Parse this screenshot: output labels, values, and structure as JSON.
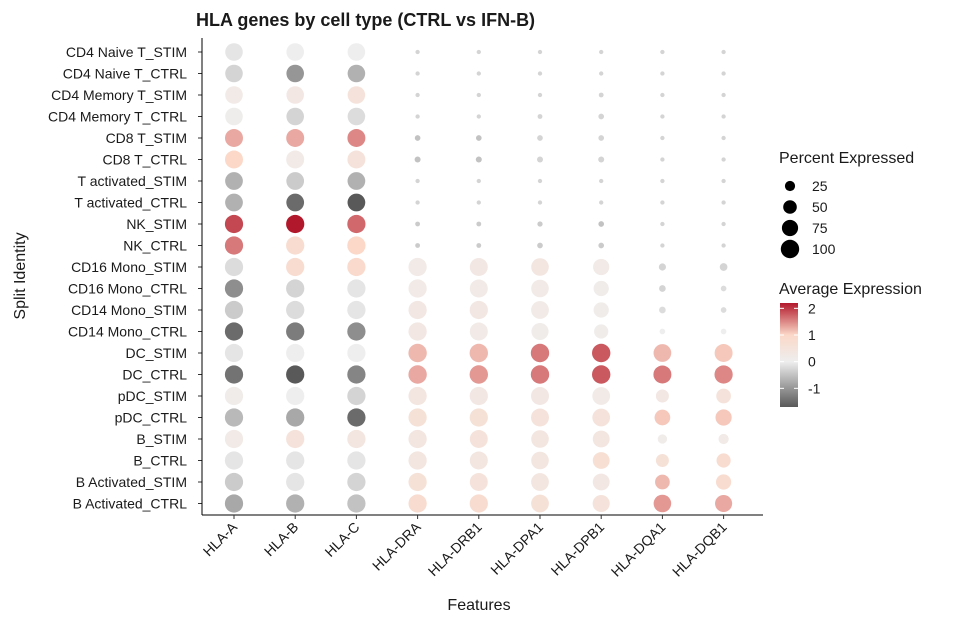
{
  "chart_data": {
    "type": "dotplot",
    "title": "HLA genes by cell type (CTRL vs IFN-B)",
    "xlabel": "Features",
    "ylabel": "Split Identity",
    "features": [
      "HLA-A",
      "HLA-B",
      "HLA-C",
      "HLA-DRA",
      "HLA-DRB1",
      "HLA-DPA1",
      "HLA-DPB1",
      "HLA-DQA1",
      "HLA-DQB1"
    ],
    "identities": [
      "CD4 Naive T_STIM",
      "CD4 Naive T_CTRL",
      "CD4 Memory T_STIM",
      "CD4 Memory T_CTRL",
      "CD8 T_STIM",
      "CD8 T_CTRL",
      "T activated_STIM",
      "T activated_CTRL",
      "NK_STIM",
      "NK_CTRL",
      "CD16 Mono_STIM",
      "CD16 Mono_CTRL",
      "CD14 Mono_STIM",
      "CD14 Mono_CTRL",
      "DC_STIM",
      "DC_CTRL",
      "pDC_STIM",
      "pDC_CTRL",
      "B_STIM",
      "B_CTRL",
      "B Activated_STIM",
      "B Activated_CTRL"
    ],
    "avg_exp": [
      [
        -0.1,
        0.0,
        0.0,
        -0.3,
        -0.3,
        -0.3,
        -0.3,
        -0.3,
        -0.3
      ],
      [
        -0.3,
        -1.0,
        -0.7,
        -0.3,
        -0.3,
        -0.3,
        -0.3,
        -0.3,
        -0.3
      ],
      [
        0.2,
        0.3,
        0.5,
        -0.3,
        -0.3,
        -0.3,
        -0.3,
        -0.3,
        -0.3
      ],
      [
        0.05,
        -0.3,
        -0.2,
        -0.3,
        -0.3,
        -0.3,
        -0.3,
        -0.3,
        -0.3
      ],
      [
        1.3,
        1.3,
        1.5,
        -0.5,
        -0.5,
        -0.3,
        -0.3,
        -0.3,
        -0.3
      ],
      [
        1.0,
        0.2,
        0.5,
        -0.5,
        -0.5,
        -0.3,
        -0.3,
        -0.3,
        -0.3
      ],
      [
        -0.7,
        -0.4,
        -0.7,
        -0.3,
        -0.3,
        -0.3,
        -0.3,
        -0.3,
        -0.3
      ],
      [
        -0.7,
        -1.5,
        -1.7,
        -0.3,
        -0.3,
        -0.3,
        -0.3,
        -0.3,
        -0.3
      ],
      [
        1.9,
        2.2,
        1.7,
        -0.4,
        -0.4,
        -0.4,
        -0.5,
        -0.3,
        -0.3
      ],
      [
        1.6,
        0.8,
        1.0,
        -0.4,
        -0.4,
        -0.4,
        -0.4,
        -0.3,
        -0.3
      ],
      [
        -0.2,
        0.8,
        0.9,
        0.2,
        0.3,
        0.4,
        0.2,
        -0.3,
        -0.3
      ],
      [
        -1.1,
        -0.3,
        -0.1,
        0.2,
        0.2,
        0.2,
        0.1,
        -0.3,
        -0.2
      ],
      [
        -0.4,
        -0.2,
        -0.1,
        0.3,
        0.3,
        0.2,
        0.1,
        -0.2,
        -0.2
      ],
      [
        -1.5,
        -1.3,
        -1.1,
        0.3,
        0.2,
        0.1,
        0.1,
        0.0,
        0.0
      ],
      [
        -0.1,
        0.0,
        0.0,
        1.2,
        1.2,
        1.6,
        1.8,
        1.2,
        1.1
      ],
      [
        -1.4,
        -1.7,
        -1.2,
        1.3,
        1.4,
        1.6,
        1.8,
        1.6,
        1.5
      ],
      [
        0.1,
        0.0,
        -0.3,
        0.4,
        0.3,
        0.3,
        0.2,
        0.3,
        0.5
      ],
      [
        -0.6,
        -0.8,
        -1.5,
        0.6,
        0.6,
        0.5,
        0.5,
        1.1,
        1.1
      ],
      [
        0.2,
        0.5,
        0.4,
        0.4,
        0.5,
        0.4,
        0.4,
        0.1,
        0.2
      ],
      [
        -0.1,
        -0.1,
        -0.1,
        0.4,
        0.4,
        0.4,
        0.7,
        0.6,
        0.8
      ],
      [
        -0.4,
        -0.1,
        -0.3,
        0.6,
        0.5,
        0.4,
        0.3,
        1.2,
        0.8
      ],
      [
        -0.8,
        -0.7,
        -0.5,
        0.8,
        0.8,
        0.6,
        0.5,
        1.4,
        1.3
      ]
    ],
    "pct_exp": [
      [
        90,
        90,
        90,
        2,
        2,
        2,
        2,
        2,
        2
      ],
      [
        90,
        90,
        90,
        2,
        2,
        2,
        2,
        2,
        2
      ],
      [
        90,
        90,
        90,
        2,
        2,
        2,
        3,
        2,
        2
      ],
      [
        90,
        90,
        90,
        2,
        2,
        3,
        5,
        2,
        2
      ],
      [
        95,
        95,
        95,
        5,
        5,
        5,
        5,
        2,
        2
      ],
      [
        95,
        95,
        95,
        6,
        6,
        6,
        6,
        2,
        2
      ],
      [
        92,
        92,
        92,
        2,
        2,
        2,
        2,
        2,
        2
      ],
      [
        92,
        92,
        92,
        2,
        2,
        2,
        2,
        2,
        2
      ],
      [
        98,
        98,
        98,
        3,
        3,
        4,
        5,
        2,
        2
      ],
      [
        98,
        98,
        98,
        3,
        3,
        5,
        5,
        2,
        2
      ],
      [
        98,
        98,
        98,
        98,
        95,
        90,
        75,
        10,
        12
      ],
      [
        98,
        98,
        98,
        98,
        95,
        90,
        65,
        8,
        5
      ],
      [
        98,
        98,
        98,
        98,
        98,
        92,
        65,
        8,
        5
      ],
      [
        98,
        98,
        98,
        98,
        95,
        85,
        55,
        5,
        5
      ],
      [
        98,
        98,
        98,
        100,
        100,
        100,
        100,
        92,
        95
      ],
      [
        98,
        98,
        98,
        100,
        100,
        100,
        100,
        95,
        98
      ],
      [
        98,
        98,
        98,
        98,
        98,
        95,
        92,
        45,
        60
      ],
      [
        98,
        98,
        98,
        98,
        98,
        95,
        92,
        70,
        75
      ],
      [
        98,
        98,
        98,
        98,
        95,
        90,
        82,
        20,
        25
      ],
      [
        98,
        98,
        98,
        98,
        95,
        90,
        82,
        45,
        55
      ],
      [
        98,
        98,
        98,
        98,
        95,
        92,
        82,
        60,
        65
      ],
      [
        98,
        98,
        98,
        98,
        98,
        92,
        85,
        90,
        85
      ]
    ],
    "size_legend": {
      "title": "Percent Expressed",
      "values": [
        25,
        50,
        75,
        100
      ],
      "labels": [
        "25",
        "50",
        "75",
        "100"
      ]
    },
    "color_legend": {
      "title": "Average Expression",
      "range": [
        -1.7,
        2.2
      ],
      "ticks": [
        2,
        1,
        0,
        -1
      ],
      "labels": [
        "2",
        "1",
        "0",
        "-1"
      ],
      "colors": [
        "#595959",
        "#eeeeee",
        "#fbd8c8",
        "#b2182b"
      ]
    },
    "legend_position": "right"
  }
}
